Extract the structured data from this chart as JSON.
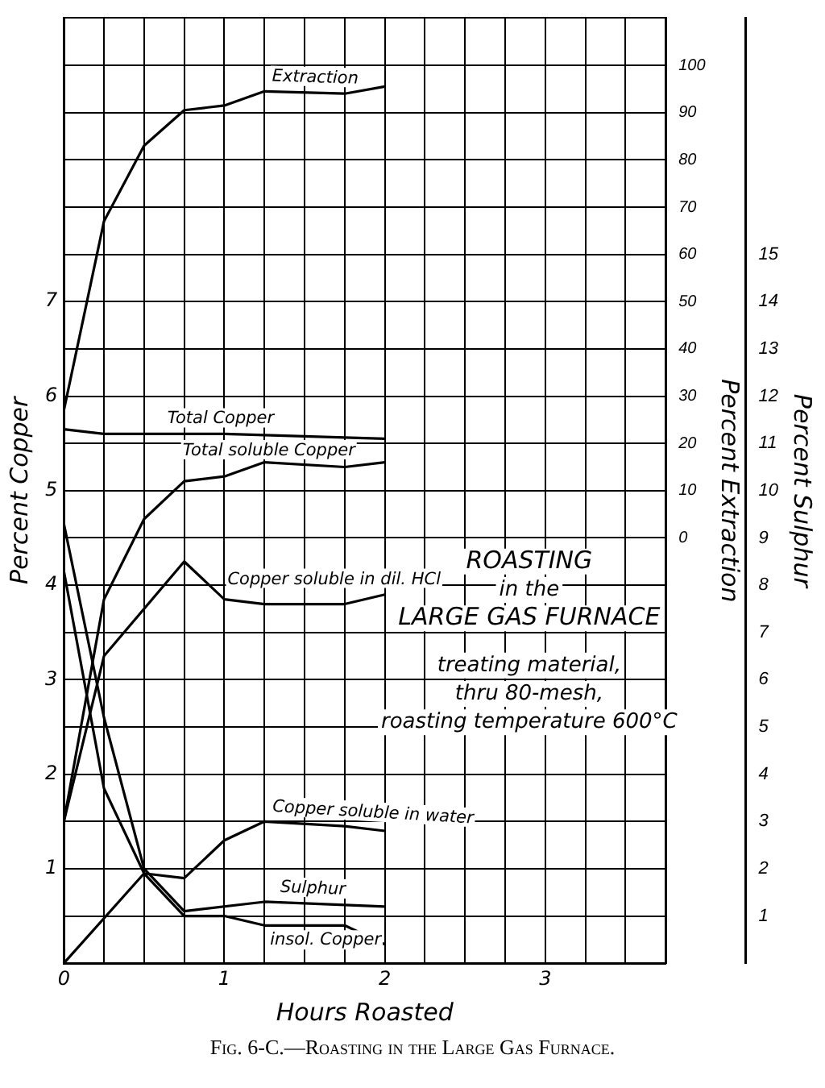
{
  "chart_data": {
    "type": "line",
    "title": "Fig. 6-C.—Roasting in the Large Gas Furnace.",
    "xlabel": "Hours Roasted",
    "ylabel": "Percent Copper",
    "y2label": "Percent Extraction",
    "y3label": "Percent Sulphur",
    "xlim": [
      0,
      3.75
    ],
    "xticks": [
      0,
      {
        "value": 0.25,
        "label": null
      },
      {
        "value": 0.5,
        "label": null
      },
      {
        "value": 0.75,
        "label": null
      },
      1,
      {
        "value": 1.25,
        "label": null
      },
      {
        "value": 1.5,
        "label": null
      },
      {
        "value": 1.75,
        "label": null
      },
      2,
      {
        "value": 2.25,
        "label": null
      },
      {
        "value": 2.5,
        "label": null
      },
      {
        "value": 2.75,
        "label": null
      },
      3,
      {
        "value": 3.25,
        "label": null
      },
      {
        "value": 3.5,
        "label": null
      },
      {
        "value": 3.75,
        "label": null
      }
    ],
    "ylim": [
      0,
      10
    ],
    "yticks": [
      {
        "value": 0,
        "label": null
      },
      {
        "value": 0.5,
        "label": null
      },
      1,
      {
        "value": 1.5,
        "label": null
      },
      2,
      {
        "value": 2.5,
        "label": null
      },
      3,
      {
        "value": 3.5,
        "label": null
      },
      4,
      {
        "value": 4.5,
        "label": null
      },
      5,
      {
        "value": 5.5,
        "label": null
      },
      6,
      {
        "value": 6.5,
        "label": null
      },
      7,
      {
        "value": 7.5,
        "label": null
      },
      {
        "value": 8,
        "label": null
      },
      {
        "value": 8.5,
        "label": null
      },
      {
        "value": 9,
        "label": null
      },
      {
        "value": 9.5,
        "label": null
      },
      {
        "value": 10,
        "label": null
      }
    ],
    "y2lim": [
      -90,
      110
    ],
    "y2ticks": [
      0,
      10,
      20,
      30,
      40,
      50,
      60,
      70,
      80,
      90,
      100
    ],
    "y3lim": [
      0,
      20
    ],
    "y3ticks": [
      1,
      2,
      3,
      4,
      5,
      6,
      7,
      8,
      9,
      10,
      11,
      12,
      13,
      14,
      15
    ],
    "grid": true,
    "legend": false,
    "marker": "none",
    "line_style": "solid",
    "series": [
      {
        "name": "Extraction",
        "color": "#000000",
        "axis": "y2",
        "x": [
          0,
          0.25,
          0.5,
          0.75,
          1,
          1.25,
          1.75,
          2
        ],
        "values": [
          27,
          67,
          83,
          90.5,
          91.5,
          94.5,
          94,
          95.5
        ]
      },
      {
        "name": "Total Copper",
        "color": "#000000",
        "x": [
          0,
          0.25,
          1,
          2
        ],
        "values": [
          5.65,
          5.6,
          5.6,
          5.55
        ]
      },
      {
        "name": "Total soluble Copper",
        "color": "#000000",
        "x": [
          0,
          0.25,
          0.5,
          0.75,
          1,
          1.25,
          1.75,
          2
        ],
        "values": [
          1.5,
          3.85,
          4.7,
          5.1,
          5.15,
          5.3,
          5.25,
          5.3
        ]
      },
      {
        "name": "Copper soluble in dil. HCl",
        "color": "#000000",
        "x": [
          0,
          0.25,
          0.75,
          1,
          1.25,
          1.75,
          2
        ],
        "values": [
          1.5,
          3.25,
          4.25,
          3.85,
          3.8,
          3.8,
          3.9
        ]
      },
      {
        "name": "Copper soluble in water",
        "color": "#000000",
        "x": [
          0,
          0.5,
          0.75,
          1,
          1.25,
          1.75,
          2
        ],
        "values": [
          0,
          0.95,
          0.9,
          1.3,
          1.5,
          1.45,
          1.4
        ]
      },
      {
        "name": "Sulphur",
        "color": "#000000",
        "axis": "y3",
        "x": [
          0,
          0.25,
          0.5,
          0.75,
          1.25,
          2
        ],
        "values": [
          9.3,
          5.2,
          2,
          1.1,
          1.3,
          1.2
        ]
      },
      {
        "name": "insol. Copper",
        "color": "#000000",
        "x": [
          0,
          0.25,
          0.5,
          0.75,
          1,
          1.25,
          1.75,
          2
        ],
        "values": [
          4.15,
          1.85,
          0.95,
          0.5,
          0.5,
          0.4,
          0.4,
          0.2
        ]
      }
    ],
    "annotations": [
      "ROASTING",
      "in the",
      "LARGE GAS FURNACE",
      "treating material,",
      "thru 80-mesh,",
      "roasting temperature 600°C"
    ]
  }
}
